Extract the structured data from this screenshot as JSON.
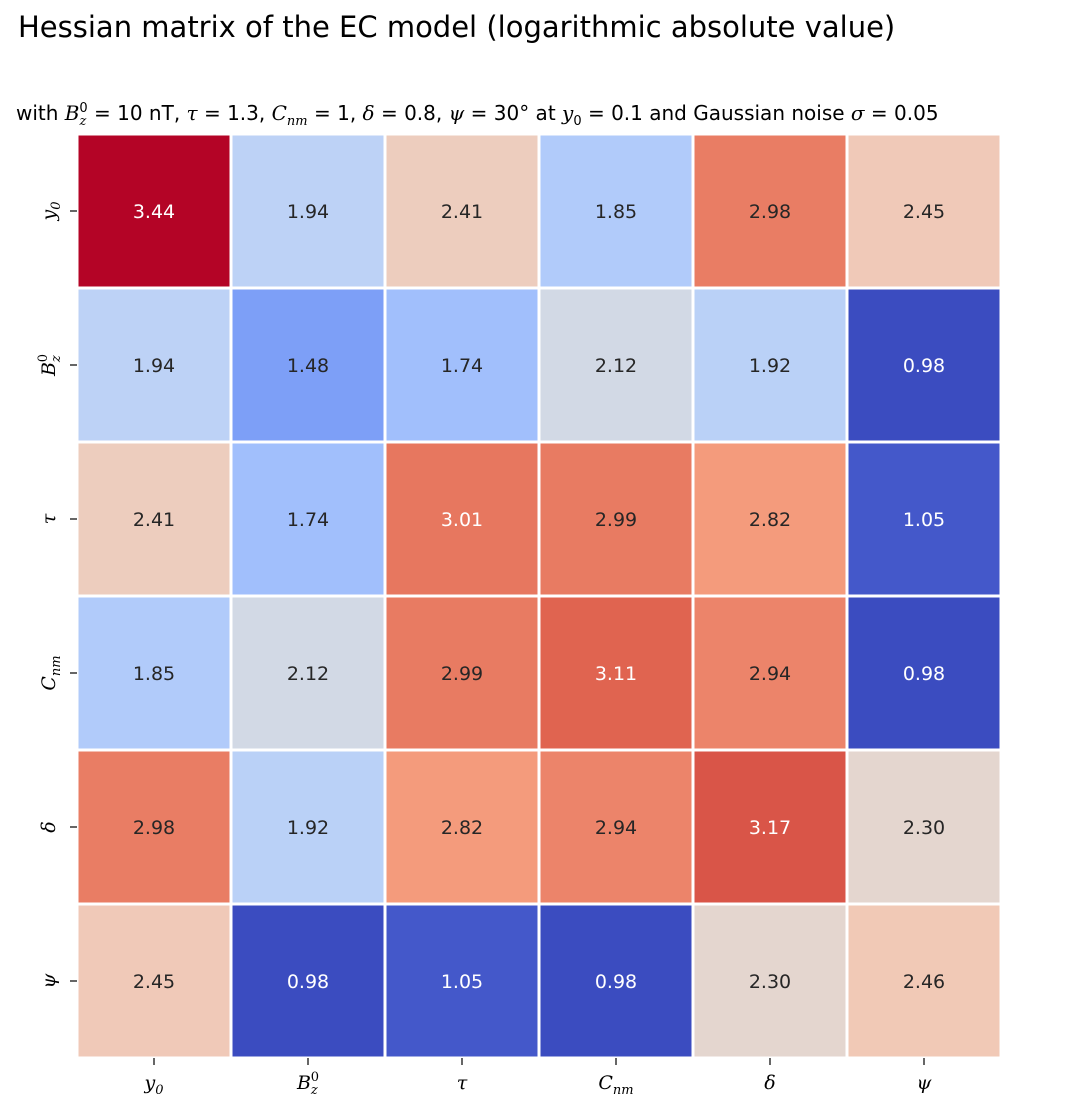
{
  "chart_data": {
    "type": "heatmap",
    "title": "Hessian matrix of the EC model (logarithmic absolute value)",
    "subtitle": {
      "p1": "with ",
      "bz": "B",
      "bz_sub": "z",
      "bz_sup": "0",
      "p2": " = 10 nT, ",
      "tau": "τ",
      "p3": " = 1.3, ",
      "c": "C",
      "c_sub": "nm",
      "p4": " = 1, ",
      "delta": "δ",
      "p5": " = 0.8, ",
      "psi": "ψ",
      "p6": " = 30° at ",
      "y": "y",
      "y_sub": "0",
      "p7": " = 0.1 and Gaussian noise ",
      "sigma": "σ",
      "p8": " = 0.05"
    },
    "labels": [
      {
        "main": "y",
        "sub": "0",
        "sup": ""
      },
      {
        "main": "B",
        "sub": "z",
        "sup": "0"
      },
      {
        "main": "τ",
        "sub": "",
        "sup": ""
      },
      {
        "main": "C",
        "sub": "nm",
        "sup": ""
      },
      {
        "main": "δ",
        "sub": "",
        "sup": ""
      },
      {
        "main": "ψ",
        "sub": "",
        "sup": ""
      }
    ],
    "values": [
      [
        3.44,
        1.94,
        2.41,
        1.85,
        2.98,
        2.45
      ],
      [
        1.94,
        1.48,
        1.74,
        2.12,
        1.92,
        0.98
      ],
      [
        2.41,
        1.74,
        3.01,
        2.99,
        2.82,
        1.05
      ],
      [
        1.85,
        2.12,
        2.99,
        3.11,
        2.94,
        0.98
      ],
      [
        2.98,
        1.92,
        2.82,
        2.94,
        3.17,
        2.3
      ],
      [
        2.45,
        0.98,
        1.05,
        0.98,
        2.3,
        2.46
      ]
    ],
    "value_format": "0.00",
    "colormap": "coolwarm",
    "vmin": 0.98,
    "vmax": 3.44,
    "colorbar": false,
    "cell_border_color": "#ffffff"
  }
}
